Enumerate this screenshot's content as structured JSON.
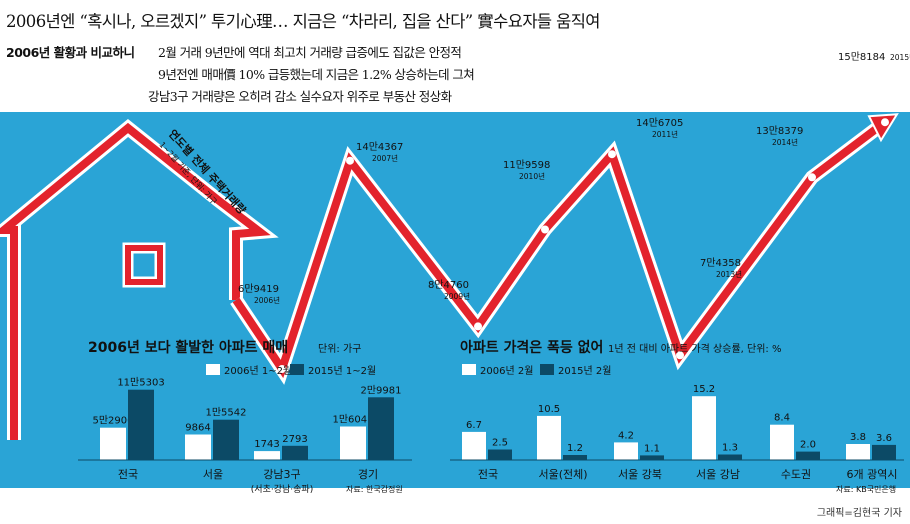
{
  "header": {
    "headline": "2006년엔 “혹시나, 오르겠지” 투기心理… 지금은 “차라리, 집을 산다” 實수요자들 움직여",
    "comparison_label": "2006년 활황과 비교하니",
    "lines": [
      "2월 거래 9년만에 역대 최고치  거래량 급증에도 집값은 안정적",
      "9년전엔 매매價 10% 급등했는데  지금은 1.2% 상승하는데 그쳐",
      "강남3구 거래량은 오히려 감소  실수요자 위주로 부동산 정상화"
    ]
  },
  "credit": "그래픽=김현국 기자",
  "chart_data": [
    {
      "type": "line",
      "title": "연도별 전체 주택거래량",
      "subtitle": "1~2월 기준, 단위: 가구",
      "points": [
        {
          "year": "2006년",
          "label": "6만9419",
          "value": 69419
        },
        {
          "year": "2007년",
          "label": "14만4367",
          "value": 144367
        },
        {
          "year": "2009년",
          "label": "8만4760",
          "value": 84760
        },
        {
          "year": "2010년",
          "label": "11만9598",
          "value": 119598
        },
        {
          "year": "2011년",
          "label": "14만6705",
          "value": 146705
        },
        {
          "year": "2013년",
          "label": "7만4358",
          "value": 74358
        },
        {
          "year": "2014년",
          "label": "13만8379",
          "value": 138379
        },
        {
          "year": "2015년",
          "label": "15만8184",
          "value": 158184
        }
      ],
      "line_color": "#e3232c"
    },
    {
      "type": "bar",
      "title": "2006년 보다 활발한 아파트 매매",
      "unit": "단위: 가구",
      "source": "자료: 한국감정원",
      "categories": [
        "전국",
        "서울",
        "강남3구",
        "경기"
      ],
      "category_note": "(서초·강남·송파)",
      "series": [
        {
          "name": "2006년 1~2월",
          "color": "#ffffff",
          "labels": [
            "5만2906",
            "9864",
            "1743",
            "1만6041"
          ],
          "values": [
            52906,
            9864,
            1743,
            16041
          ]
        },
        {
          "name": "2015년 1~2월",
          "color": "#0c4a66",
          "labels": [
            "11만5303",
            "1만5542",
            "2793",
            "2만9981"
          ],
          "values": [
            115303,
            15542,
            2793,
            29981
          ]
        }
      ]
    },
    {
      "type": "bar",
      "title": "아파트 가격은 폭등 없어",
      "unit": "1년 전 대비 아파트 가격 상승률, 단위: %",
      "source": "자료: KB국민은행",
      "categories": [
        "전국",
        "서울(전체)",
        "서울 강북",
        "서울 강남",
        "수도권",
        "6개 광역시"
      ],
      "series": [
        {
          "name": "2006년 2월",
          "color": "#ffffff",
          "labels": [
            "6.7",
            "10.5",
            "4.2",
            "15.2",
            "8.4",
            "3.8"
          ],
          "values": [
            6.7,
            10.5,
            4.2,
            15.2,
            8.4,
            3.8
          ]
        },
        {
          "name": "2015년 2월",
          "color": "#0c4a66",
          "labels": [
            "2.5",
            "1.2",
            "1.1",
            "1.3",
            "2.0",
            "3.6"
          ],
          "values": [
            2.5,
            1.2,
            1.1,
            1.3,
            2.0,
            3.6
          ]
        }
      ]
    }
  ]
}
